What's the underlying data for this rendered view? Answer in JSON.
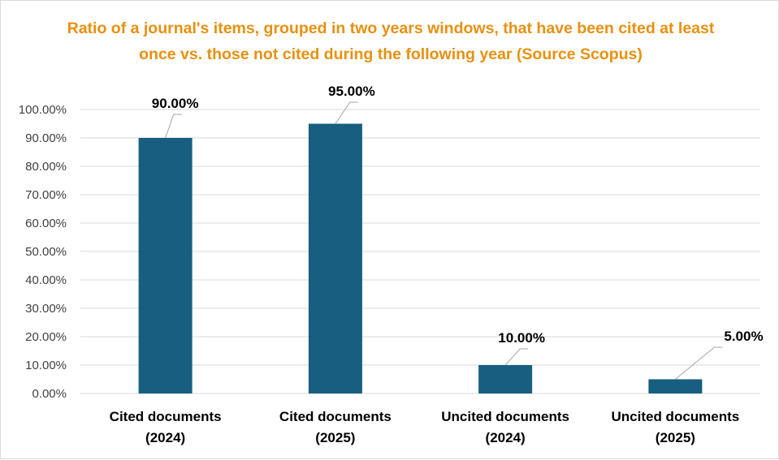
{
  "chart_data": {
    "type": "bar",
    "title": "Ratio of a journal's items, grouped in two years windows, that have been cited at least once vs. those not cited during the following year (Source Scopus)",
    "categories": [
      [
        "Cited documents",
        "(2024)"
      ],
      [
        "Cited documents",
        "(2025)"
      ],
      [
        "Uncited documents",
        "(2024)"
      ],
      [
        "Uncited documents",
        "(2025)"
      ]
    ],
    "values": [
      90,
      95,
      10,
      5
    ],
    "data_labels": [
      "90.00%",
      "95.00%",
      "10.00%",
      "5.00%"
    ],
    "y_ticks": [
      "0.00%",
      "10.00%",
      "20.00%",
      "30.00%",
      "40.00%",
      "50.00%",
      "60.00%",
      "70.00%",
      "80.00%",
      "90.00%",
      "100.00%"
    ],
    "ylim": [
      0,
      100
    ],
    "xlabel": "",
    "ylabel": "",
    "grid": true,
    "legend": "none"
  },
  "colors": {
    "bar": "#175e80",
    "title": "#e8900f",
    "gridline": "#d9d9d9",
    "leader_line": "#a6a6a6"
  }
}
